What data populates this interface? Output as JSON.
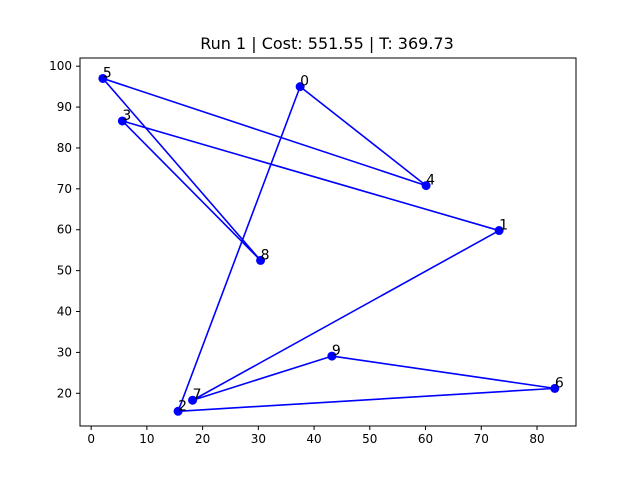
{
  "chart_data": {
    "type": "line",
    "title": "Run 1 | Cost: 551.55 | T: 369.73",
    "xlabel": "",
    "ylabel": "",
    "xlim": [
      -2.0,
      87.0
    ],
    "ylim": [
      12.0,
      102.0
    ],
    "xticks": [
      0,
      10,
      20,
      30,
      40,
      50,
      60,
      70,
      80
    ],
    "yticks": [
      20,
      30,
      40,
      50,
      60,
      70,
      80,
      90,
      100
    ],
    "grid": false,
    "legend": null,
    "color": "#0000ff",
    "points": [
      {
        "label": "0",
        "x": 37.5,
        "y": 95.0
      },
      {
        "label": "1",
        "x": 73.2,
        "y": 59.8
      },
      {
        "label": "2",
        "x": 15.6,
        "y": 15.6
      },
      {
        "label": "3",
        "x": 5.6,
        "y": 86.6
      },
      {
        "label": "4",
        "x": 60.1,
        "y": 70.8
      },
      {
        "label": "5",
        "x": 2.1,
        "y": 97.0
      },
      {
        "label": "6",
        "x": 83.2,
        "y": 21.2
      },
      {
        "label": "7",
        "x": 18.2,
        "y": 18.3
      },
      {
        "label": "8",
        "x": 30.4,
        "y": 52.5
      },
      {
        "label": "9",
        "x": 43.2,
        "y": 29.1
      }
    ],
    "route": [
      0,
      4,
      5,
      8,
      3,
      1,
      7,
      9,
      6,
      2,
      0
    ]
  }
}
